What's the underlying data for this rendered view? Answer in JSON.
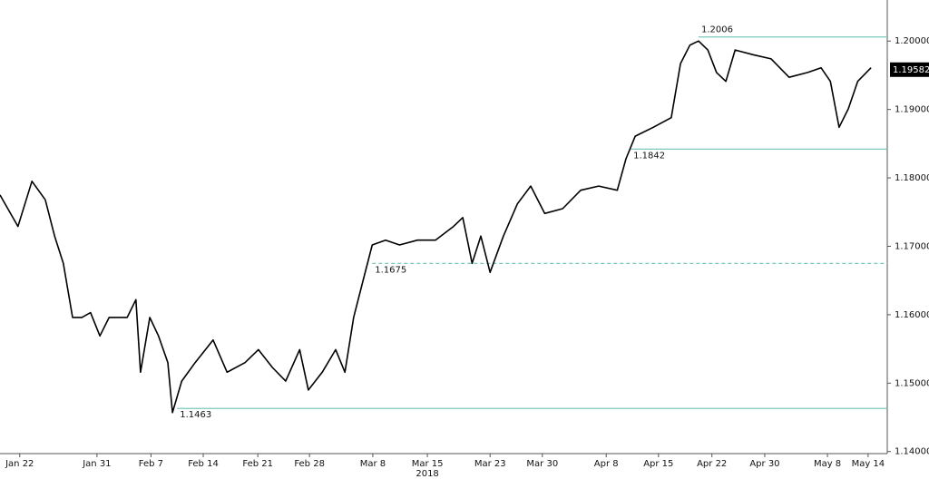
{
  "chart_data": {
    "type": "line",
    "xlabel": "2018",
    "xlim": [
      0,
      152.8
    ],
    "ylim": [
      1.1397,
      1.206
    ],
    "grid": false,
    "yticks": [
      {
        "value": 1.14,
        "label": "1.14000"
      },
      {
        "value": 1.15,
        "label": "1.15000"
      },
      {
        "value": 1.16,
        "label": "1.16000"
      },
      {
        "value": 1.17,
        "label": "1.17000"
      },
      {
        "value": 1.18,
        "label": "1.18000"
      },
      {
        "value": 1.19,
        "label": "1.19000"
      },
      {
        "value": 1.2,
        "label": "1.20000"
      }
    ],
    "xticks": [
      {
        "value": 3.4,
        "label": "Jan 22"
      },
      {
        "value": 16.7,
        "label": "Jan 31"
      },
      {
        "value": 26,
        "label": "Feb 7"
      },
      {
        "value": 35,
        "label": "Feb 14"
      },
      {
        "value": 44.4,
        "label": "Feb 21"
      },
      {
        "value": 53.3,
        "label": "Feb 28"
      },
      {
        "value": 64.2,
        "label": "Mar 8"
      },
      {
        "value": 73.6,
        "label": "Mar 15"
      },
      {
        "value": 84.4,
        "label": "Mar 23"
      },
      {
        "value": 93.4,
        "label": "Mar 30"
      },
      {
        "value": 104.4,
        "label": "Apr 8"
      },
      {
        "value": 113.4,
        "label": "Apr 15"
      },
      {
        "value": 122.6,
        "label": "Apr 22"
      },
      {
        "value": 131.7,
        "label": "Apr 30"
      },
      {
        "value": 142.5,
        "label": "May 8"
      },
      {
        "value": 149.5,
        "label": "May 14"
      }
    ],
    "series": [
      {
        "color": "#000000",
        "x": [
          0,
          3.1,
          5.5,
          7.8,
          9.4,
          10.9,
          12.5,
          14.1,
          15.6,
          17.2,
          18.8,
          21.9,
          23.4,
          24.2,
          25.8,
          27.3,
          28.9,
          29.7,
          31.3,
          33.6,
          36.7,
          39.1,
          42.2,
          44.5,
          46.9,
          49.2,
          51.6,
          53.1,
          55.5,
          57.8,
          59.4,
          60.9,
          62.5,
          64.1,
          66.4,
          68.8,
          71.9,
          75,
          78.1,
          79.7,
          81.3,
          82.8,
          84.4,
          86.7,
          89.1,
          91.4,
          93.8,
          96.9,
          100,
          103.1,
          106.3,
          107.8,
          109.4,
          112.5,
          115.6,
          117.2,
          118.8,
          120.3,
          121.9,
          123.4,
          125,
          126.6,
          129.7,
          132.8,
          135.9,
          139.1,
          141.4,
          143,
          144.5,
          146.1,
          147.7,
          150
        ],
        "values": [
          1.1775,
          1.1729,
          1.1795,
          1.1768,
          1.1715,
          1.1675,
          1.1596,
          1.1596,
          1.1603,
          1.1569,
          1.1596,
          1.1596,
          1.1622,
          1.1516,
          1.1596,
          1.1569,
          1.153,
          1.1457,
          1.1503,
          1.153,
          1.1563,
          1.1516,
          1.153,
          1.1549,
          1.1523,
          1.1503,
          1.1549,
          1.149,
          1.1516,
          1.1549,
          1.1516,
          1.1596,
          1.1649,
          1.1702,
          1.1709,
          1.1702,
          1.1709,
          1.1709,
          1.1729,
          1.1742,
          1.1675,
          1.1715,
          1.1662,
          1.1715,
          1.1762,
          1.1788,
          1.1748,
          1.1755,
          1.1782,
          1.1788,
          1.1782,
          1.1828,
          1.1861,
          1.1874,
          1.1888,
          1.1967,
          1.1994,
          1.2,
          1.1987,
          1.1954,
          1.1941,
          1.1987,
          1.198,
          1.1974,
          1.1947,
          1.1954,
          1.1961,
          1.1941,
          1.1874,
          1.1901,
          1.1941,
          1.1961
        ]
      }
    ],
    "reference_lines": [
      {
        "value": 1.2006,
        "x_start": 120.3,
        "dashed": false
      },
      {
        "value": 1.1842,
        "x_start": 108.6,
        "dashed": false
      },
      {
        "value": 1.1675,
        "x_start": 64.1,
        "dashed": true
      },
      {
        "value": 1.1463,
        "x_start": 30.5,
        "dashed": false
      }
    ],
    "reference_color": "#7cc8bd",
    "last_price": 1.19582
  }
}
